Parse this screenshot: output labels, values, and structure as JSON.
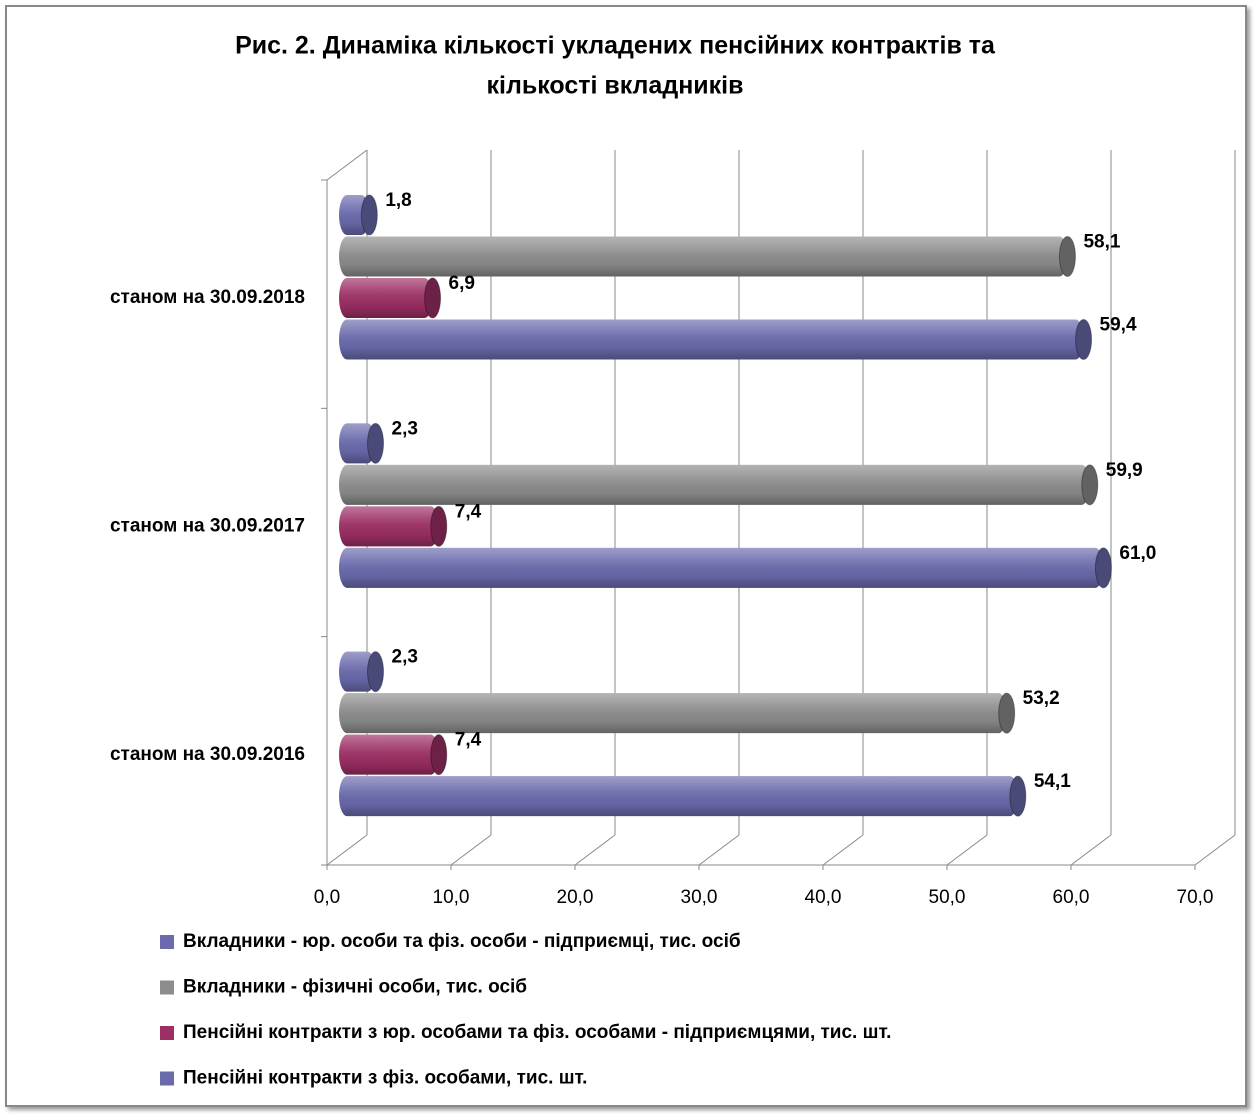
{
  "chart_data": {
    "type": "bar",
    "orientation": "horizontal",
    "style": "3d-cylinder",
    "title": [
      "Рис. 2. Динаміка кількості укладених пенсійних контрактів та",
      "кількості вкладників"
    ],
    "categories": [
      "станом на 30.09.2016",
      "станом на 30.09.2017",
      "станом на 30.09.2018"
    ],
    "series": [
      {
        "name": "Вкладники - юр. особи та фіз. особи - підприємці, тис. осіб",
        "color": "#6a6aad",
        "values": [
          2.3,
          2.3,
          1.8
        ],
        "value_labels": [
          "2,3",
          "2,3",
          "1,8"
        ]
      },
      {
        "name": "Вкладники - фізичні особи, тис. осіб",
        "color": "#8c8c8c",
        "values": [
          53.2,
          59.9,
          58.1
        ],
        "value_labels": [
          "53,2",
          "59,9",
          "58,1"
        ]
      },
      {
        "name": "Пенсійні контракти з юр. особами та фіз. особами - підприємцями, тис. шт.",
        "color": "#9c2f64",
        "values": [
          7.4,
          7.4,
          6.9
        ],
        "value_labels": [
          "7,4",
          "7,4",
          "6,9"
        ]
      },
      {
        "name": "Пенсійні контракти з фіз. особами, тис. шт.",
        "color": "#6a6aad",
        "values": [
          54.1,
          61.0,
          59.4
        ],
        "value_labels": [
          "54,1",
          "61,0",
          "59,4"
        ]
      }
    ],
    "xlim": [
      0,
      70
    ],
    "xticks": [
      {
        "value": 0,
        "label": "0,0"
      },
      {
        "value": 10,
        "label": "10,0"
      },
      {
        "value": 20,
        "label": "20,0"
      },
      {
        "value": 30,
        "label": "30,0"
      },
      {
        "value": 40,
        "label": "40,0"
      },
      {
        "value": 50,
        "label": "50,0"
      },
      {
        "value": 60,
        "label": "60,0"
      },
      {
        "value": 70,
        "label": "70,0"
      }
    ],
    "grid": true,
    "legend": "bottom"
  }
}
